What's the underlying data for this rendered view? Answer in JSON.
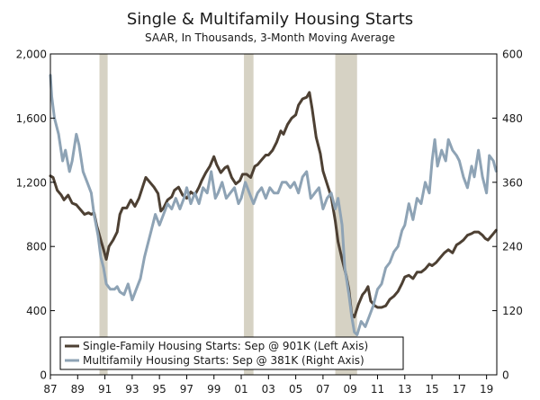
{
  "chart_data": {
    "type": "line",
    "title": "Single & Multifamily Housing Starts",
    "subtitle": "SAAR, In Thousands, 3-Month Moving Average",
    "x_range": [
      1987,
      2019.75
    ],
    "x_ticks": [
      {
        "value": 1987,
        "label": "87"
      },
      {
        "value": 1989,
        "label": "89"
      },
      {
        "value": 1991,
        "label": "91"
      },
      {
        "value": 1993,
        "label": "93"
      },
      {
        "value": 1995,
        "label": "95"
      },
      {
        "value": 1997,
        "label": "97"
      },
      {
        "value": 1999,
        "label": "99"
      },
      {
        "value": 2001,
        "label": "01"
      },
      {
        "value": 2003,
        "label": "03"
      },
      {
        "value": 2005,
        "label": "05"
      },
      {
        "value": 2007,
        "label": "07"
      },
      {
        "value": 2009,
        "label": "09"
      },
      {
        "value": 2011,
        "label": "11"
      },
      {
        "value": 2013,
        "label": "13"
      },
      {
        "value": 2015,
        "label": "15"
      },
      {
        "value": 2017,
        "label": "17"
      },
      {
        "value": 2019,
        "label": "19"
      }
    ],
    "left_axis": {
      "range": [
        0,
        2000
      ],
      "ticks": [
        0,
        400,
        800,
        1200,
        1600,
        2000
      ],
      "labels": [
        "0",
        "400",
        "800",
        "1,200",
        "1,600",
        "2,000"
      ]
    },
    "right_axis": {
      "range": [
        0,
        600
      ],
      "ticks": [
        0,
        120,
        240,
        360,
        480,
        600
      ],
      "labels": [
        "0",
        "120",
        "240",
        "360",
        "480",
        "600"
      ]
    },
    "recessions": [
      [
        1990.6,
        1991.2
      ],
      [
        2001.2,
        2001.9
      ],
      [
        2007.9,
        2009.5
      ]
    ],
    "legend_position": "bottom-left",
    "series": [
      {
        "name": "Single-Family Housing Starts: Sep @ 901K (Left Axis)",
        "axis": "left",
        "color": "#4d4033",
        "points": [
          [
            1987.0,
            1240
          ],
          [
            1987.2,
            1230
          ],
          [
            1987.5,
            1150
          ],
          [
            1987.8,
            1120
          ],
          [
            1988.0,
            1090
          ],
          [
            1988.3,
            1120
          ],
          [
            1988.6,
            1070
          ],
          [
            1988.9,
            1060
          ],
          [
            1989.2,
            1030
          ],
          [
            1989.5,
            1000
          ],
          [
            1989.8,
            1010
          ],
          [
            1990.0,
            1000
          ],
          [
            1990.2,
            1010
          ],
          [
            1990.4,
            930
          ],
          [
            1990.7,
            840
          ],
          [
            1990.9,
            780
          ],
          [
            1991.1,
            720
          ],
          [
            1991.3,
            800
          ],
          [
            1991.6,
            840
          ],
          [
            1991.9,
            890
          ],
          [
            1992.1,
            1000
          ],
          [
            1992.3,
            1040
          ],
          [
            1992.6,
            1040
          ],
          [
            1992.9,
            1090
          ],
          [
            1993.2,
            1050
          ],
          [
            1993.5,
            1100
          ],
          [
            1993.8,
            1180
          ],
          [
            1994.0,
            1230
          ],
          [
            1994.3,
            1200
          ],
          [
            1994.6,
            1170
          ],
          [
            1994.9,
            1130
          ],
          [
            1995.1,
            1020
          ],
          [
            1995.3,
            1040
          ],
          [
            1995.6,
            1090
          ],
          [
            1995.9,
            1110
          ],
          [
            1996.1,
            1150
          ],
          [
            1996.4,
            1170
          ],
          [
            1996.7,
            1120
          ],
          [
            1997.0,
            1100
          ],
          [
            1997.3,
            1140
          ],
          [
            1997.6,
            1120
          ],
          [
            1997.9,
            1170
          ],
          [
            1998.1,
            1210
          ],
          [
            1998.4,
            1260
          ],
          [
            1998.7,
            1300
          ],
          [
            1999.0,
            1360
          ],
          [
            1999.2,
            1310
          ],
          [
            1999.5,
            1260
          ],
          [
            1999.8,
            1290
          ],
          [
            2000.0,
            1300
          ],
          [
            2000.3,
            1230
          ],
          [
            2000.6,
            1190
          ],
          [
            2000.9,
            1210
          ],
          [
            2001.1,
            1250
          ],
          [
            2001.4,
            1250
          ],
          [
            2001.7,
            1230
          ],
          [
            2002.0,
            1300
          ],
          [
            2002.2,
            1310
          ],
          [
            2002.5,
            1340
          ],
          [
            2002.8,
            1370
          ],
          [
            2003.0,
            1370
          ],
          [
            2003.3,
            1400
          ],
          [
            2003.6,
            1450
          ],
          [
            2003.9,
            1520
          ],
          [
            2004.1,
            1500
          ],
          [
            2004.4,
            1560
          ],
          [
            2004.7,
            1600
          ],
          [
            2005.0,
            1620
          ],
          [
            2005.2,
            1680
          ],
          [
            2005.5,
            1720
          ],
          [
            2005.8,
            1730
          ],
          [
            2006.0,
            1760
          ],
          [
            2006.2,
            1660
          ],
          [
            2006.5,
            1480
          ],
          [
            2006.8,
            1380
          ],
          [
            2007.0,
            1270
          ],
          [
            2007.3,
            1190
          ],
          [
            2007.6,
            1110
          ],
          [
            2007.9,
            960
          ],
          [
            2008.1,
            830
          ],
          [
            2008.4,
            720
          ],
          [
            2008.7,
            620
          ],
          [
            2008.9,
            530
          ],
          [
            2009.1,
            380
          ],
          [
            2009.3,
            360
          ],
          [
            2009.6,
            440
          ],
          [
            2009.9,
            500
          ],
          [
            2010.1,
            520
          ],
          [
            2010.3,
            550
          ],
          [
            2010.5,
            460
          ],
          [
            2010.8,
            430
          ],
          [
            2011.0,
            420
          ],
          [
            2011.3,
            420
          ],
          [
            2011.6,
            430
          ],
          [
            2011.9,
            470
          ],
          [
            2012.2,
            490
          ],
          [
            2012.5,
            520
          ],
          [
            2012.8,
            570
          ],
          [
            2013.0,
            610
          ],
          [
            2013.3,
            620
          ],
          [
            2013.6,
            600
          ],
          [
            2013.9,
            640
          ],
          [
            2014.2,
            640
          ],
          [
            2014.5,
            660
          ],
          [
            2014.8,
            690
          ],
          [
            2015.0,
            680
          ],
          [
            2015.3,
            700
          ],
          [
            2015.6,
            730
          ],
          [
            2015.9,
            760
          ],
          [
            2016.2,
            780
          ],
          [
            2016.5,
            760
          ],
          [
            2016.8,
            810
          ],
          [
            2017.0,
            820
          ],
          [
            2017.3,
            840
          ],
          [
            2017.6,
            870
          ],
          [
            2017.9,
            880
          ],
          [
            2018.1,
            890
          ],
          [
            2018.4,
            890
          ],
          [
            2018.7,
            870
          ],
          [
            2018.9,
            850
          ],
          [
            2019.1,
            840
          ],
          [
            2019.3,
            860
          ],
          [
            2019.5,
            880
          ],
          [
            2019.7,
            901
          ]
        ]
      },
      {
        "name": "Multifamily Housing Starts: Sep @ 381K (Right Axis)",
        "axis": "right",
        "color": "#8ea3b5",
        "points": [
          [
            1987.0,
            560
          ],
          [
            1987.1,
            520
          ],
          [
            1987.3,
            480
          ],
          [
            1987.6,
            450
          ],
          [
            1987.9,
            400
          ],
          [
            1988.1,
            420
          ],
          [
            1988.4,
            380
          ],
          [
            1988.6,
            400
          ],
          [
            1988.9,
            450
          ],
          [
            1989.1,
            430
          ],
          [
            1989.4,
            380
          ],
          [
            1989.7,
            360
          ],
          [
            1990.0,
            340
          ],
          [
            1990.2,
            300
          ],
          [
            1990.5,
            260
          ],
          [
            1990.7,
            220
          ],
          [
            1990.9,
            200
          ],
          [
            1991.1,
            170
          ],
          [
            1991.4,
            160
          ],
          [
            1991.7,
            160
          ],
          [
            1991.9,
            165
          ],
          [
            1992.1,
            155
          ],
          [
            1992.4,
            150
          ],
          [
            1992.7,
            170
          ],
          [
            1993.0,
            140
          ],
          [
            1993.3,
            160
          ],
          [
            1993.6,
            180
          ],
          [
            1993.9,
            220
          ],
          [
            1994.1,
            240
          ],
          [
            1994.4,
            270
          ],
          [
            1994.7,
            300
          ],
          [
            1995.0,
            280
          ],
          [
            1995.3,
            300
          ],
          [
            1995.6,
            320
          ],
          [
            1995.9,
            310
          ],
          [
            1996.2,
            330
          ],
          [
            1996.5,
            310
          ],
          [
            1996.8,
            330
          ],
          [
            1997.0,
            350
          ],
          [
            1997.3,
            320
          ],
          [
            1997.6,
            340
          ],
          [
            1997.9,
            320
          ],
          [
            1998.2,
            350
          ],
          [
            1998.5,
            340
          ],
          [
            1998.8,
            380
          ],
          [
            1999.1,
            330
          ],
          [
            1999.3,
            340
          ],
          [
            1999.6,
            360
          ],
          [
            1999.9,
            330
          ],
          [
            2000.2,
            340
          ],
          [
            2000.5,
            350
          ],
          [
            2000.8,
            320
          ],
          [
            2001.0,
            330
          ],
          [
            2001.3,
            360
          ],
          [
            2001.6,
            340
          ],
          [
            2001.9,
            320
          ],
          [
            2002.2,
            340
          ],
          [
            2002.5,
            350
          ],
          [
            2002.8,
            330
          ],
          [
            2003.1,
            350
          ],
          [
            2003.4,
            340
          ],
          [
            2003.7,
            340
          ],
          [
            2004.0,
            360
          ],
          [
            2004.3,
            360
          ],
          [
            2004.6,
            350
          ],
          [
            2004.9,
            360
          ],
          [
            2005.2,
            340
          ],
          [
            2005.5,
            370
          ],
          [
            2005.8,
            380
          ],
          [
            2006.1,
            330
          ],
          [
            2006.4,
            340
          ],
          [
            2006.7,
            350
          ],
          [
            2007.0,
            310
          ],
          [
            2007.3,
            330
          ],
          [
            2007.6,
            340
          ],
          [
            2007.9,
            310
          ],
          [
            2008.1,
            330
          ],
          [
            2008.4,
            280
          ],
          [
            2008.6,
            200
          ],
          [
            2008.9,
            150
          ],
          [
            2009.1,
            110
          ],
          [
            2009.3,
            80
          ],
          [
            2009.5,
            75
          ],
          [
            2009.8,
            100
          ],
          [
            2010.1,
            90
          ],
          [
            2010.4,
            110
          ],
          [
            2010.7,
            130
          ],
          [
            2011.0,
            160
          ],
          [
            2011.3,
            170
          ],
          [
            2011.6,
            200
          ],
          [
            2011.9,
            210
          ],
          [
            2012.2,
            230
          ],
          [
            2012.5,
            240
          ],
          [
            2012.8,
            270
          ],
          [
            2013.0,
            280
          ],
          [
            2013.3,
            320
          ],
          [
            2013.6,
            290
          ],
          [
            2013.9,
            330
          ],
          [
            2014.2,
            320
          ],
          [
            2014.5,
            360
          ],
          [
            2014.8,
            340
          ],
          [
            2015.0,
            400
          ],
          [
            2015.2,
            440
          ],
          [
            2015.4,
            390
          ],
          [
            2015.7,
            420
          ],
          [
            2016.0,
            400
          ],
          [
            2016.2,
            440
          ],
          [
            2016.5,
            420
          ],
          [
            2016.8,
            410
          ],
          [
            2017.0,
            400
          ],
          [
            2017.3,
            370
          ],
          [
            2017.6,
            350
          ],
          [
            2017.9,
            390
          ],
          [
            2018.1,
            370
          ],
          [
            2018.4,
            420
          ],
          [
            2018.7,
            370
          ],
          [
            2019.0,
            340
          ],
          [
            2019.2,
            410
          ],
          [
            2019.5,
            400
          ],
          [
            2019.7,
            381
          ]
        ]
      }
    ]
  }
}
